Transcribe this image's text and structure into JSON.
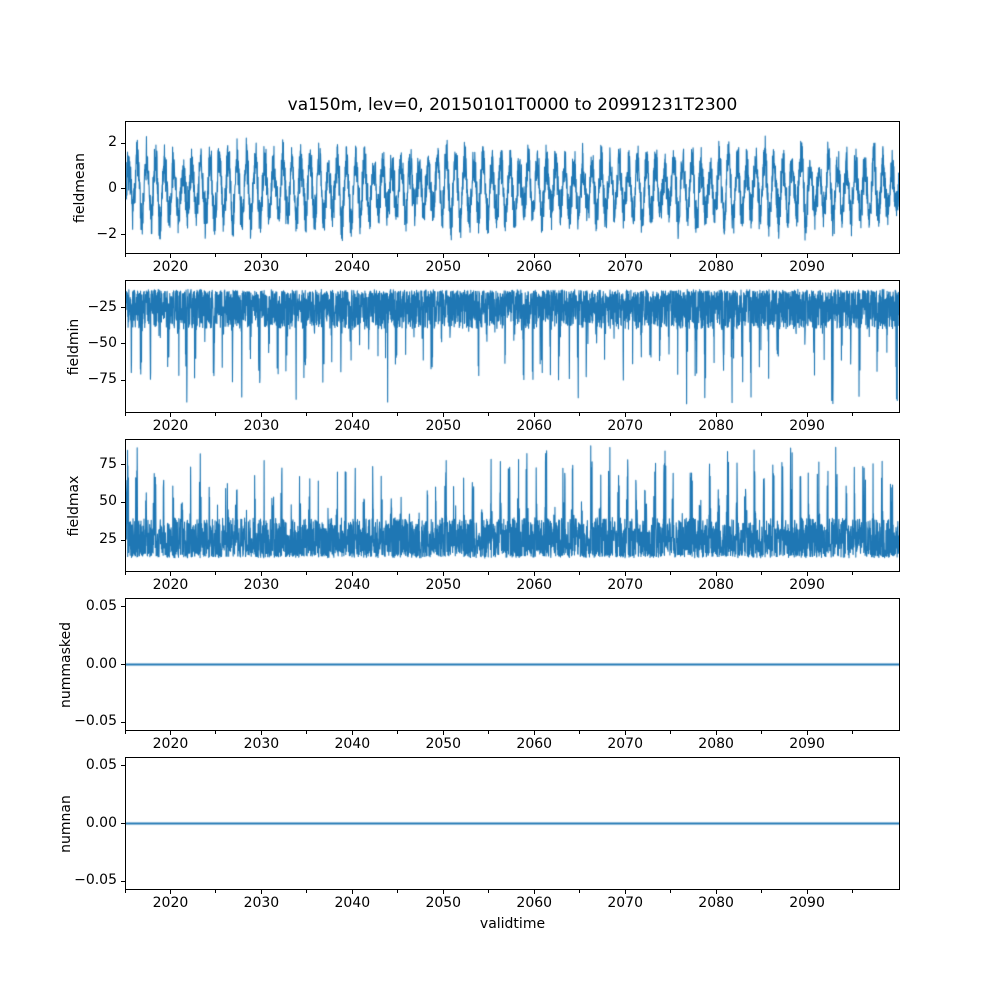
{
  "figure": {
    "title": "va150m, lev=0, 20150101T0000 to 20991231T2300",
    "xlabel": "validtime",
    "background_color": "#ffffff",
    "line_color": "#1f77b4",
    "axis_color": "#000000"
  },
  "x_axis": {
    "range": [
      2015,
      2100
    ],
    "major_ticks": [
      2020,
      2030,
      2040,
      2050,
      2060,
      2070,
      2080,
      2090
    ],
    "major_tick_labels": [
      "2020",
      "2030",
      "2040",
      "2050",
      "2060",
      "2070",
      "2080",
      "2090"
    ],
    "minor_tick_step": 5
  },
  "chart_data": [
    {
      "type": "line",
      "ylabel": "fieldmean",
      "ylim": [
        -2.83,
        2.96
      ],
      "y_ticks": [
        2,
        0,
        -2
      ],
      "y_tick_labels": [
        "2",
        "0",
        "−2"
      ],
      "summary": "Dense annual oscillation around 0; envelope roughly -2.6 to +2.9",
      "series": {
        "kind": "seasonal_oscillation",
        "points_per_year": 48,
        "seed": 7,
        "annual_amplitude": [
          0.8,
          1.5
        ],
        "noise_amplitude": [
          0.5,
          1.1
        ],
        "clip": [
          -2.6,
          2.92
        ]
      }
    },
    {
      "type": "line",
      "ylabel": "fieldmin",
      "ylim": [
        -97.9,
        -5.6
      ],
      "y_ticks": [
        -25,
        -50,
        -75
      ],
      "y_tick_labels": [
        "−25",
        "−50",
        "−75"
      ],
      "summary": "Dense band between about -12 and -40 with frequent downward spikes to -45..-80, extremes near -92",
      "series": {
        "kind": "noisy_band_spikes",
        "points_per_year": 48,
        "seed": 11,
        "dir": -1,
        "band_edge": -11.5,
        "band_depth": 27,
        "spike_prob": 0.42,
        "spike_phase": 3.6,
        "spike_len": [
          6,
          44
        ],
        "extreme": -92.5
      }
    },
    {
      "type": "line",
      "ylabel": "fieldmax",
      "ylim": [
        3.7,
        92.3
      ],
      "y_ticks": [
        25,
        50,
        75
      ],
      "y_tick_labels": [
        "25",
        "50",
        "75"
      ],
      "summary": "Dense band between about 12 and 40 with frequent upward spikes to 45..80, extremes near 89",
      "series": {
        "kind": "noisy_band_spikes",
        "points_per_year": 48,
        "seed": 13,
        "dir": 1,
        "band_edge": 12.5,
        "band_depth": 26,
        "spike_prob": 0.45,
        "spike_phase": 0.6,
        "spike_len": [
          8,
          46
        ],
        "extreme": 88.5
      }
    },
    {
      "type": "line",
      "ylabel": "nummasked",
      "ylim": [
        -0.0575,
        0.0575
      ],
      "y_ticks": [
        0.05,
        0.0,
        -0.05
      ],
      "y_tick_labels": [
        "0.05",
        "0.00",
        "−0.05"
      ],
      "summary": "Constant zero for entire period",
      "series": {
        "kind": "constant",
        "value": 0
      }
    },
    {
      "type": "line",
      "ylabel": "numnan",
      "ylim": [
        -0.0575,
        0.0575
      ],
      "y_ticks": [
        0.05,
        0.0,
        -0.05
      ],
      "y_tick_labels": [
        "0.05",
        "0.00",
        "−0.05"
      ],
      "summary": "Constant zero for entire period",
      "series": {
        "kind": "constant",
        "value": 0
      }
    }
  ]
}
